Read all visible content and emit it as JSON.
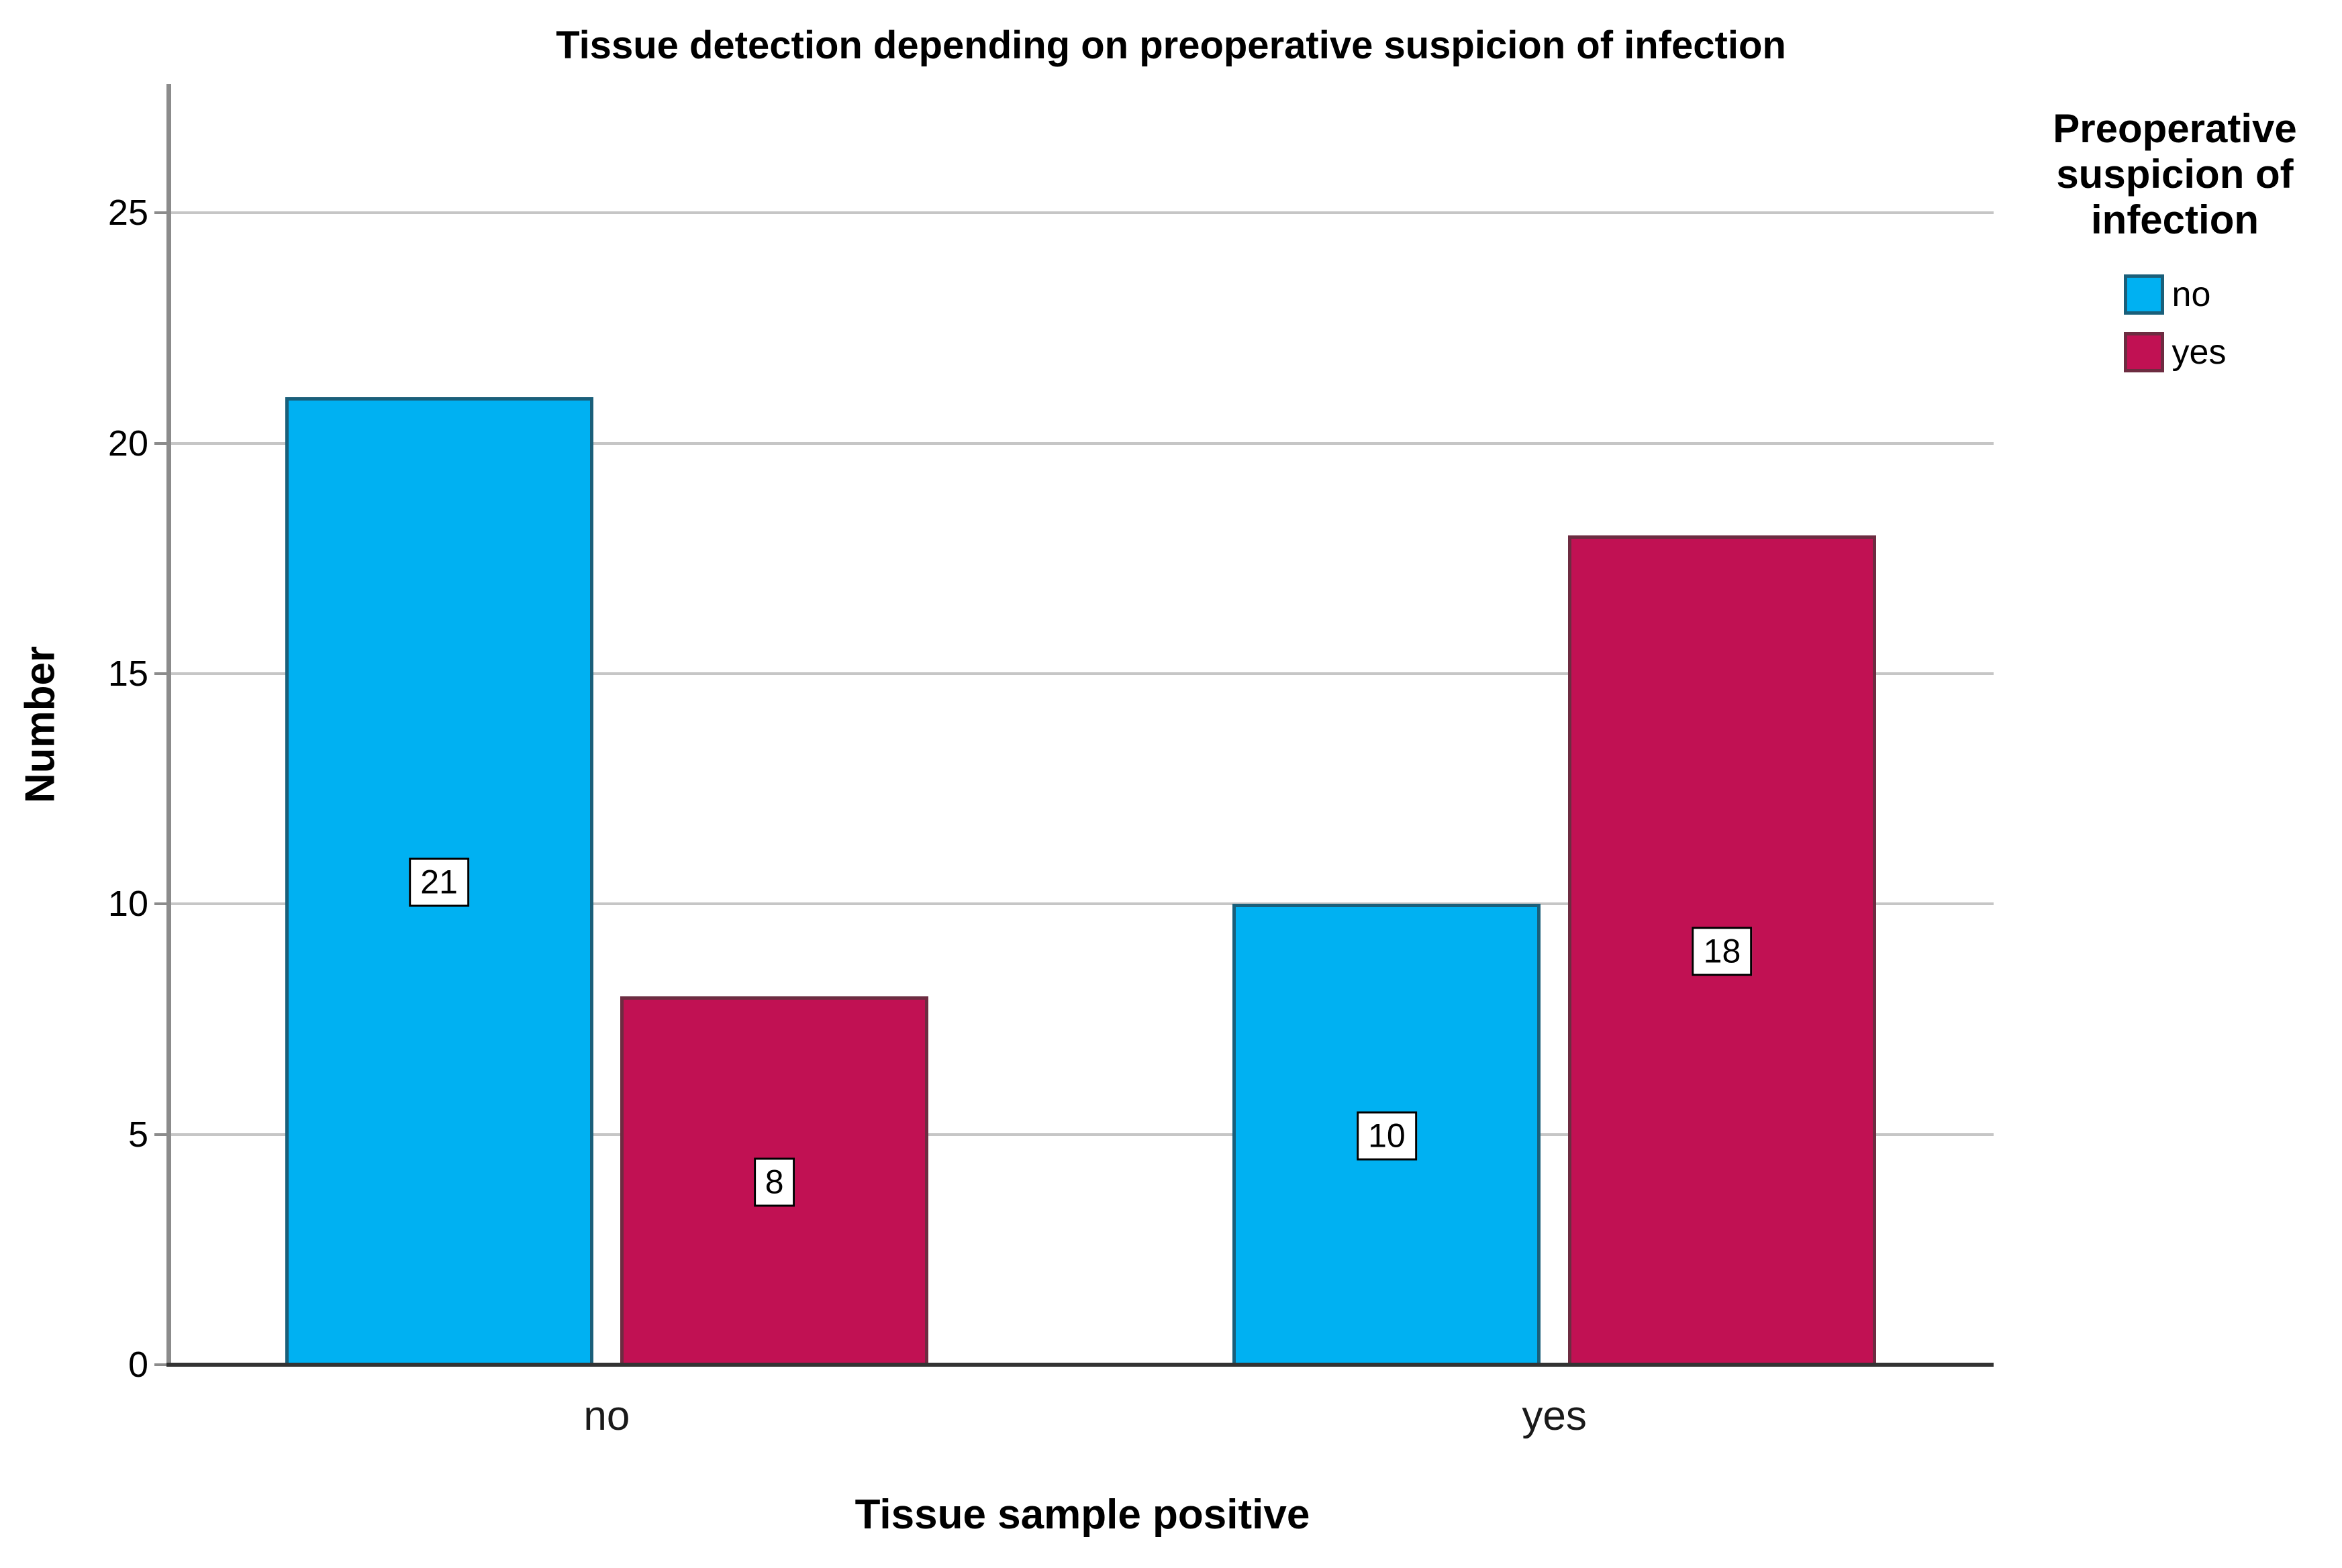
{
  "chart_data": {
    "type": "bar",
    "title": "Tissue detection depending on preoperative suspicion of infection",
    "xlabel": "Tissue sample positive",
    "ylabel": "Number",
    "legend_title": "Preoperative suspicion of infection",
    "legend_position": "right",
    "categories": [
      "no",
      "yes"
    ],
    "series": [
      {
        "name": "no",
        "color": "#00B1F2",
        "border_color": "#1A5F7A",
        "values": [
          21,
          10
        ]
      },
      {
        "name": "yes",
        "color": "#C11153",
        "border_color": "#6D2C41",
        "values": [
          8,
          18
        ]
      }
    ],
    "y_ticks": [
      0,
      5,
      10,
      15,
      20,
      25
    ],
    "ylim": [
      0,
      27.8
    ],
    "grid": "horizontal",
    "value_labels": [
      {
        "category": "no",
        "series": "no",
        "value": 21
      },
      {
        "category": "no",
        "series": "yes",
        "value": 8
      },
      {
        "category": "yes",
        "series": "no",
        "value": 10
      },
      {
        "category": "yes",
        "series": "yes",
        "value": 18
      }
    ],
    "colors": {
      "background": "#FFFFFF",
      "gridline": "#C6C6C6",
      "y_axis_line": "#8C8C8C",
      "x_axis_line": "#333333",
      "value_box_bg": "#FFFFFF",
      "value_box_border": "#000000",
      "text": "#000000"
    }
  }
}
